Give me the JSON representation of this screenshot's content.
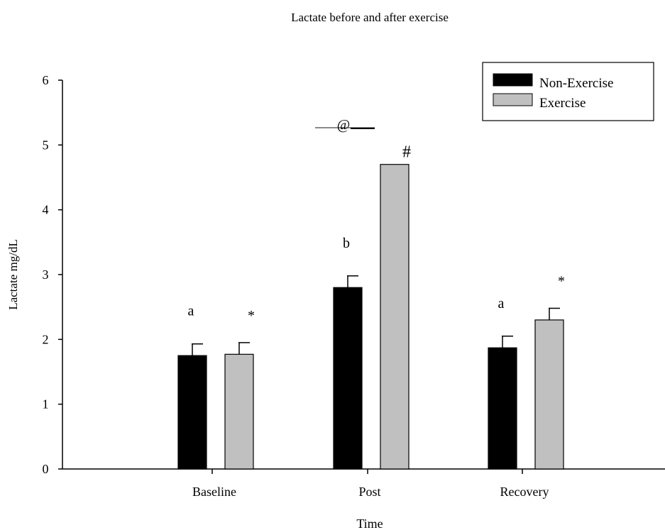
{
  "chart_data": {
    "type": "bar",
    "title": "Lactate before and after exercise",
    "xlabel": "Time",
    "ylabel": "Lactate mg/dL",
    "ylim": [
      0,
      6
    ],
    "yticks": [
      "0",
      "1",
      "2",
      "3",
      "4",
      "5",
      "6"
    ],
    "categories": [
      "Baseline",
      "Post",
      "Recovery"
    ],
    "series": [
      {
        "name": "Non-Exercise",
        "color": "#000000",
        "values": [
          1.75,
          2.8,
          1.87
        ],
        "errors": [
          0.18,
          0.18,
          0.18
        ],
        "labels": [
          "a",
          "b",
          "a"
        ]
      },
      {
        "name": "Exercise",
        "color": "#c0c0c0",
        "values": [
          1.77,
          4.7,
          2.3
        ],
        "errors": [
          0.18,
          0.0,
          0.18
        ],
        "labels": [
          "*",
          "#",
          "*"
        ]
      }
    ],
    "annotations": [
      {
        "text": "@"
      }
    ],
    "legend_position": "top-right",
    "grid": false
  }
}
